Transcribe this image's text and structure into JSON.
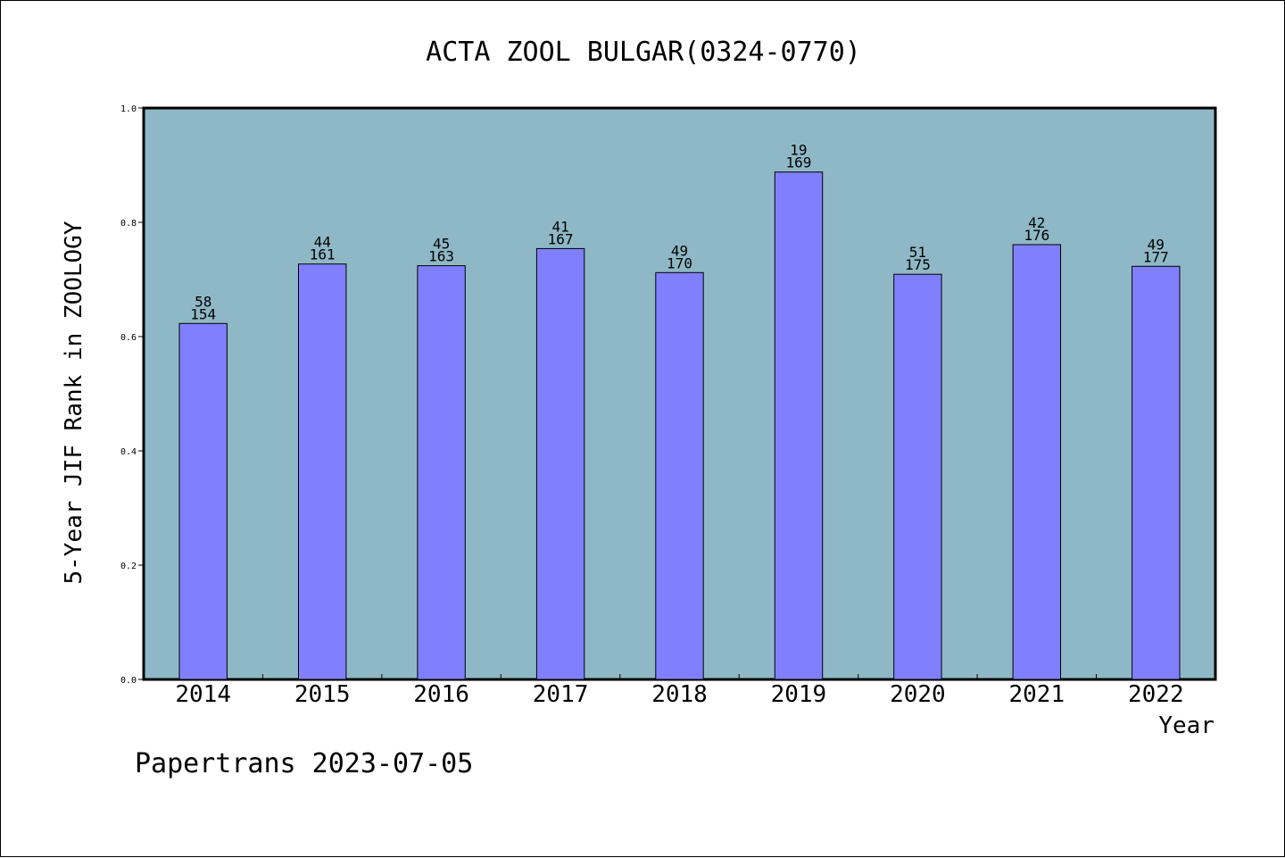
{
  "chart_data": {
    "type": "bar",
    "title": "ACTA ZOOL BULGAR(0324-0770)",
    "xlabel": "Year",
    "ylabel": "5-Year JIF Rank in ZOOLOGY",
    "ylim": [
      0,
      1.0
    ],
    "yticks": [
      "0.0",
      "0.2",
      "0.4",
      "0.6",
      "0.8",
      "1.0"
    ],
    "categories": [
      "2014",
      "2015",
      "2016",
      "2017",
      "2018",
      "2019",
      "2020",
      "2021",
      "2022"
    ],
    "values": [
      0.623,
      0.727,
      0.724,
      0.754,
      0.712,
      0.888,
      0.709,
      0.761,
      0.723
    ],
    "rank_labels": [
      "58",
      "44",
      "45",
      "41",
      "49",
      "19",
      "51",
      "42",
      "49"
    ],
    "total_labels": [
      "154",
      "161",
      "163",
      "167",
      "170",
      "169",
      "175",
      "176",
      "177"
    ],
    "grid": false,
    "colors": {
      "plot_background": "#8fb8c6",
      "bar_fill": "#8080ff",
      "bar_stroke": "#000000"
    }
  },
  "footer": {
    "text": "Papertrans 2023-07-05"
  }
}
